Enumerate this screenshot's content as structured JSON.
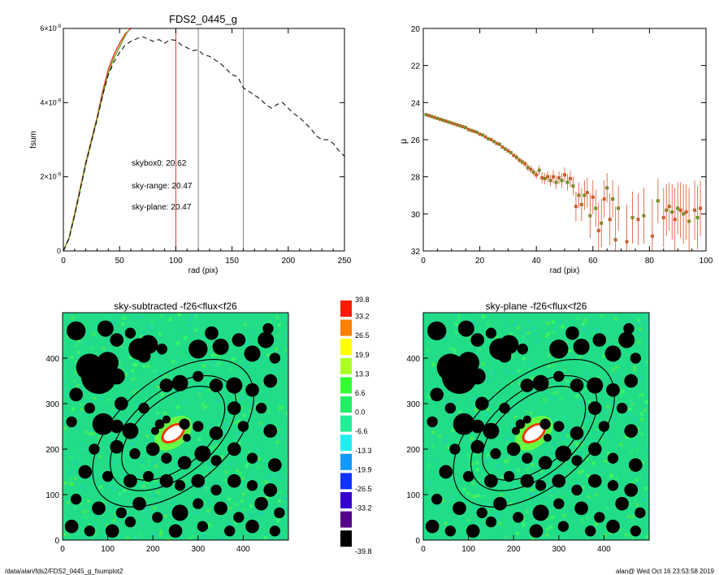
{
  "footer": {
    "path": "/data/alan/fds2/FDS2_0445_g_fsumplot2",
    "stamp": "alan@  Wed Oct 16 23:53:58 2019"
  },
  "colors": {
    "sky_range": "#ff2a2a",
    "sky_plane": "#33dd33",
    "skybox": "#000000",
    "curve_fsum": "#ee3322",
    "curve_green": "#66aa22",
    "sky_field": "#22dd88",
    "object_core": "#ffffff"
  },
  "chart_data": [
    {
      "id": "fsum",
      "type": "line",
      "title": "FDS2_0445_g",
      "xlabel": "rad (pix)",
      "ylabel": "fsum",
      "xlim": [
        0,
        250
      ],
      "ylim": [
        0,
        6e-09
      ],
      "x_ticks": [
        "0",
        "50",
        "100",
        "150",
        "200",
        "250"
      ],
      "y_ticks": [
        {
          "mant": "0",
          "exp": ""
        },
        {
          "mant": "2×10",
          "exp": "-9"
        },
        {
          "mant": "4×10",
          "exp": "-9"
        },
        {
          "mant": "6×10",
          "exp": "-9"
        }
      ],
      "vlines": [
        {
          "x": 100,
          "color": "#ff2a2a"
        },
        {
          "x": 120,
          "color": "#888888"
        },
        {
          "x": 160,
          "color": "#888888"
        }
      ],
      "annotations": [
        {
          "text": "skybox0: 20.62",
          "color": "#000000"
        },
        {
          "text": "sky-range: 20.47",
          "color": "#ff2a2a"
        },
        {
          "text": "sky-plane: 20.47",
          "color": "#33dd33"
        }
      ],
      "series": [
        {
          "style": "solid",
          "color": "#ee3322",
          "x": [
            0,
            5,
            10,
            15,
            20,
            25,
            30,
            35,
            40,
            45,
            50,
            55,
            60
          ],
          "y": [
            0,
            3.5e-10,
            1e-09,
            1.7e-09,
            2.4e-09,
            3e-09,
            3.6e-09,
            4.3e-09,
            4.9e-09,
            5.3e-09,
            5.6e-09,
            5.85e-09,
            6e-09
          ]
        },
        {
          "style": "solid",
          "color": "#66aa22",
          "x": [
            0,
            5,
            10,
            15,
            20,
            25,
            30,
            35,
            40,
            45,
            50,
            55,
            58
          ],
          "y": [
            0,
            3.3e-10,
            9.5e-10,
            1.65e-09,
            2.35e-09,
            2.95e-09,
            3.55e-09,
            4.2e-09,
            4.8e-09,
            5.2e-09,
            5.5e-09,
            5.8e-09,
            5.95e-09
          ]
        },
        {
          "style": "dashed",
          "color": "#000000",
          "x": [
            0,
            5,
            10,
            15,
            20,
            25,
            30,
            35,
            40,
            45,
            50,
            55,
            60,
            65,
            70,
            75,
            80,
            85,
            90,
            95,
            100,
            105,
            110,
            115,
            120,
            125,
            130,
            135,
            140,
            145,
            150,
            155,
            160,
            165,
            170,
            175,
            180,
            185,
            190,
            195,
            200,
            205,
            210,
            215,
            220,
            225,
            230,
            235,
            240,
            245,
            250
          ],
          "y": [
            0,
            3.3e-10,
            9.5e-10,
            1.65e-09,
            2.35e-09,
            2.95e-09,
            3.55e-09,
            4.2e-09,
            4.75e-09,
            5.1e-09,
            5.35e-09,
            5.55e-09,
            5.65e-09,
            5.72e-09,
            5.78e-09,
            5.72e-09,
            5.65e-09,
            5.7e-09,
            5.6e-09,
            5.7e-09,
            5.68e-09,
            5.55e-09,
            5.48e-09,
            5.4e-09,
            5.42e-09,
            5.28e-09,
            5.25e-09,
            5.15e-09,
            5.05e-09,
            4.9e-09,
            4.75e-09,
            4.7e-09,
            4.4e-09,
            4.3e-09,
            4.2e-09,
            4.1e-09,
            3.95e-09,
            3.85e-09,
            3.95e-09,
            4e-09,
            3.85e-09,
            3.7e-09,
            3.6e-09,
            3.45e-09,
            3.3e-09,
            3.1e-09,
            3e-09,
            3e-09,
            2.9e-09,
            2.7e-09,
            2.55e-09
          ]
        }
      ]
    },
    {
      "id": "profile",
      "type": "scatter",
      "xlabel": "rad (pix)",
      "ylabel": "μ",
      "xlim": [
        0,
        100
      ],
      "ylim": [
        32,
        20
      ],
      "x_ticks": [
        "0",
        "20",
        "40",
        "60",
        "80",
        "100"
      ],
      "y_ticks": [
        "20",
        "22",
        "24",
        "26",
        "28",
        "30",
        "32"
      ],
      "points": [
        [
          1.0,
          24.65,
          0
        ],
        [
          2.0,
          24.7,
          0
        ],
        [
          3.0,
          24.75,
          0
        ],
        [
          4.0,
          24.8,
          0
        ],
        [
          5.0,
          24.85,
          0
        ],
        [
          6.0,
          24.9,
          0
        ],
        [
          7.0,
          24.95,
          0
        ],
        [
          8.0,
          25.0,
          0
        ],
        [
          9.0,
          25.05,
          0
        ],
        [
          10.0,
          25.1,
          0
        ],
        [
          11.0,
          25.15,
          0
        ],
        [
          12.0,
          25.2,
          0
        ],
        [
          13.0,
          25.25,
          0
        ],
        [
          14.0,
          25.3,
          0
        ],
        [
          15.0,
          25.35,
          0
        ],
        [
          16.0,
          25.45,
          0
        ],
        [
          17.0,
          25.5,
          0
        ],
        [
          18.0,
          25.55,
          0
        ],
        [
          19.0,
          25.6,
          0
        ],
        [
          20.0,
          25.7,
          0
        ],
        [
          21.0,
          25.75,
          0
        ],
        [
          22.0,
          25.85,
          0
        ],
        [
          23.0,
          25.95,
          0
        ],
        [
          24.0,
          26.0,
          0
        ],
        [
          25.0,
          26.1,
          0
        ],
        [
          26.0,
          26.2,
          0
        ],
        [
          27.0,
          26.25,
          0.1
        ],
        [
          28.0,
          26.4,
          0.1
        ],
        [
          29.0,
          26.5,
          0.1
        ],
        [
          30.0,
          26.6,
          0.1
        ],
        [
          31.0,
          26.7,
          0.1
        ],
        [
          32.0,
          26.85,
          0.1
        ],
        [
          33.0,
          26.95,
          0.15
        ],
        [
          34.0,
          27.1,
          0.15
        ],
        [
          35.0,
          27.2,
          0.15
        ],
        [
          36.0,
          27.3,
          0.15
        ],
        [
          37.0,
          27.5,
          0.2
        ],
        [
          38.0,
          27.6,
          0.2
        ],
        [
          39.0,
          27.75,
          0.2
        ],
        [
          40.0,
          27.9,
          0.2
        ],
        [
          41.0,
          27.65,
          0.25
        ],
        [
          42.0,
          28.05,
          0.3
        ],
        [
          43.0,
          28.1,
          0.3
        ],
        [
          44.0,
          28.0,
          0.3
        ],
        [
          45.0,
          28.2,
          0.3
        ],
        [
          46.0,
          28.0,
          0.35
        ],
        [
          47.0,
          28.3,
          0.35
        ],
        [
          48.0,
          28.05,
          0.35
        ],
        [
          49.0,
          28.2,
          0.4
        ],
        [
          50.0,
          27.9,
          0.4
        ],
        [
          51.0,
          28.3,
          0.45
        ],
        [
          52.0,
          28.1,
          0.45
        ],
        [
          53.0,
          28.5,
          0.5
        ],
        [
          54.0,
          29.6,
          0.8
        ],
        [
          55.0,
          29.0,
          0.7
        ],
        [
          56.0,
          29.5,
          0.9
        ],
        [
          57.0,
          29.0,
          0.8
        ],
        [
          58.0,
          28.85,
          0.8
        ],
        [
          59.0,
          30.1,
          1.2
        ],
        [
          60.0,
          29.1,
          0.9
        ],
        [
          61.0,
          29.7,
          1.0
        ],
        [
          62.0,
          30.9,
          1.5
        ],
        [
          63.0,
          30.5,
          1.3
        ],
        [
          64.0,
          29.2,
          1.0
        ],
        [
          65.0,
          28.6,
          0.8
        ],
        [
          66.0,
          30.3,
          1.4
        ],
        [
          67.0,
          29.2,
          1.0
        ],
        [
          68.0,
          31.4,
          1.8
        ],
        [
          69.0,
          29.7,
          1.2
        ],
        [
          72.0,
          31.5,
          2.0
        ],
        [
          74.0,
          30.2,
          1.4
        ],
        [
          76.0,
          30.3,
          1.4
        ],
        [
          78.0,
          30.1,
          1.5
        ],
        [
          81.0,
          31.2,
          2.0
        ],
        [
          83.0,
          29.3,
          1.2
        ],
        [
          85.0,
          30.2,
          1.6
        ],
        [
          86.0,
          29.8,
          1.4
        ],
        [
          87.0,
          29.6,
          1.3
        ],
        [
          88.0,
          29.9,
          1.5
        ],
        [
          89.0,
          30.3,
          1.7
        ],
        [
          90.0,
          29.7,
          1.4
        ],
        [
          91.0,
          29.8,
          1.5
        ],
        [
          92.0,
          30.0,
          1.6
        ],
        [
          93.0,
          29.9,
          1.5
        ],
        [
          94.0,
          30.4,
          1.8
        ],
        [
          96.0,
          29.8,
          1.6
        ],
        [
          97.0,
          30.2,
          1.7
        ],
        [
          98.0,
          29.7,
          1.5
        ]
      ]
    },
    {
      "id": "img_subtracted",
      "type": "heatmap",
      "title": "sky-subtracted -f26<flux<f26",
      "xlim": [
        0,
        500
      ],
      "ylim": [
        0,
        500
      ],
      "x_ticks": [
        "0",
        "100",
        "200",
        "300",
        "400"
      ],
      "y_ticks": [
        "0",
        "100",
        "200",
        "300",
        "400"
      ],
      "center": [
        245,
        235
      ],
      "ellipses": [
        {
          "a": 210,
          "b": 120,
          "pa_deg": -40
        },
        {
          "a": 165,
          "b": 92,
          "pa_deg": -40
        },
        {
          "a": 135,
          "b": 75,
          "pa_deg": -40
        }
      ]
    },
    {
      "id": "colorbar",
      "type": "table",
      "labels": [
        "39.8",
        "33.2",
        "26.5",
        "19.9",
        "13.3",
        "6.6",
        "0.0",
        "-6.6",
        "-13.3",
        "-19.9",
        "-26.5",
        "-33.2",
        "-39.8"
      ],
      "swatches": [
        "#ff1a00",
        "#ff7f00",
        "#ffff00",
        "#aaff22",
        "#33ff33",
        "#22ee66",
        "#22ee99",
        "#22eeee",
        "#1199ff",
        "#1133ff",
        "#3300cc",
        "#550088",
        "#000000"
      ]
    },
    {
      "id": "img_plane",
      "type": "heatmap",
      "title": "sky-plane -f26<flux<f26",
      "xlim": [
        0,
        500
      ],
      "ylim": [
        0,
        500
      ],
      "x_ticks": [
        "0",
        "100",
        "200",
        "300",
        "400"
      ],
      "y_ticks": [
        "0",
        "100",
        "200",
        "300",
        "400"
      ],
      "center": [
        245,
        235
      ],
      "ellipses": [
        {
          "a": 210,
          "b": 120,
          "pa_deg": -40
        },
        {
          "a": 165,
          "b": 92,
          "pa_deg": -40
        },
        {
          "a": 135,
          "b": 75,
          "pa_deg": -40
        }
      ]
    }
  ],
  "masks": [
    [
      30,
      460,
      14
    ],
    [
      95,
      465,
      12
    ],
    [
      120,
      440,
      10
    ],
    [
      150,
      455,
      8
    ],
    [
      80,
      360,
      26
    ],
    [
      60,
      380,
      20
    ],
    [
      100,
      390,
      16
    ],
    [
      120,
      360,
      12
    ],
    [
      170,
      420,
      16
    ],
    [
      190,
      430,
      14
    ],
    [
      180,
      405,
      10
    ],
    [
      220,
      420,
      8
    ],
    [
      300,
      420,
      14
    ],
    [
      330,
      455,
      10
    ],
    [
      350,
      425,
      12
    ],
    [
      390,
      440,
      10
    ],
    [
      420,
      410,
      12
    ],
    [
      450,
      440,
      12
    ],
    [
      470,
      400,
      8
    ],
    [
      455,
      465,
      8
    ],
    [
      230,
      340,
      10
    ],
    [
      260,
      345,
      12
    ],
    [
      300,
      360,
      8
    ],
    [
      340,
      340,
      10
    ],
    [
      380,
      340,
      12
    ],
    [
      420,
      330,
      10
    ],
    [
      460,
      350,
      10
    ],
    [
      30,
      320,
      10
    ],
    [
      60,
      290,
      8
    ],
    [
      130,
      300,
      10
    ],
    [
      180,
      290,
      8
    ],
    [
      380,
      290,
      10
    ],
    [
      440,
      290,
      8
    ],
    [
      20,
      260,
      8
    ],
    [
      90,
      255,
      16
    ],
    [
      120,
      250,
      10
    ],
    [
      150,
      240,
      12
    ],
    [
      270,
      255,
      8
    ],
    [
      300,
      250,
      8
    ],
    [
      340,
      235,
      10
    ],
    [
      400,
      250,
      8
    ],
    [
      460,
      240,
      10
    ],
    [
      70,
      200,
      8
    ],
    [
      120,
      205,
      10
    ],
    [
      160,
      190,
      8
    ],
    [
      200,
      200,
      10
    ],
    [
      230,
      180,
      8
    ],
    [
      270,
      170,
      10
    ],
    [
      310,
      190,
      12
    ],
    [
      340,
      175,
      8
    ],
    [
      380,
      200,
      10
    ],
    [
      420,
      180,
      8
    ],
    [
      470,
      165,
      10
    ],
    [
      50,
      150,
      10
    ],
    [
      100,
      140,
      8
    ],
    [
      150,
      130,
      10
    ],
    [
      190,
      140,
      8
    ],
    [
      230,
      130,
      10
    ],
    [
      260,
      120,
      8
    ],
    [
      300,
      130,
      10
    ],
    [
      340,
      110,
      8
    ],
    [
      380,
      130,
      10
    ],
    [
      420,
      120,
      8
    ],
    [
      460,
      110,
      10
    ],
    [
      30,
      90,
      8
    ],
    [
      80,
      70,
      10
    ],
    [
      130,
      60,
      8
    ],
    [
      170,
      80,
      10
    ],
    [
      210,
      50,
      8
    ],
    [
      260,
      60,
      12
    ],
    [
      300,
      80,
      8
    ],
    [
      350,
      70,
      10
    ],
    [
      390,
      50,
      8
    ],
    [
      440,
      80,
      10
    ],
    [
      480,
      60,
      8
    ],
    [
      20,
      30,
      10
    ],
    [
      60,
      20,
      8
    ],
    [
      110,
      20,
      10
    ],
    [
      150,
      40,
      8
    ],
    [
      250,
      20,
      10
    ],
    [
      310,
      30,
      8
    ],
    [
      370,
      20,
      8
    ],
    [
      420,
      30,
      10
    ],
    [
      470,
      20,
      8
    ],
    [
      215,
      255,
      7
    ],
    [
      230,
      265,
      6
    ],
    [
      205,
      240,
      6
    ],
    [
      275,
      225,
      6
    ]
  ]
}
